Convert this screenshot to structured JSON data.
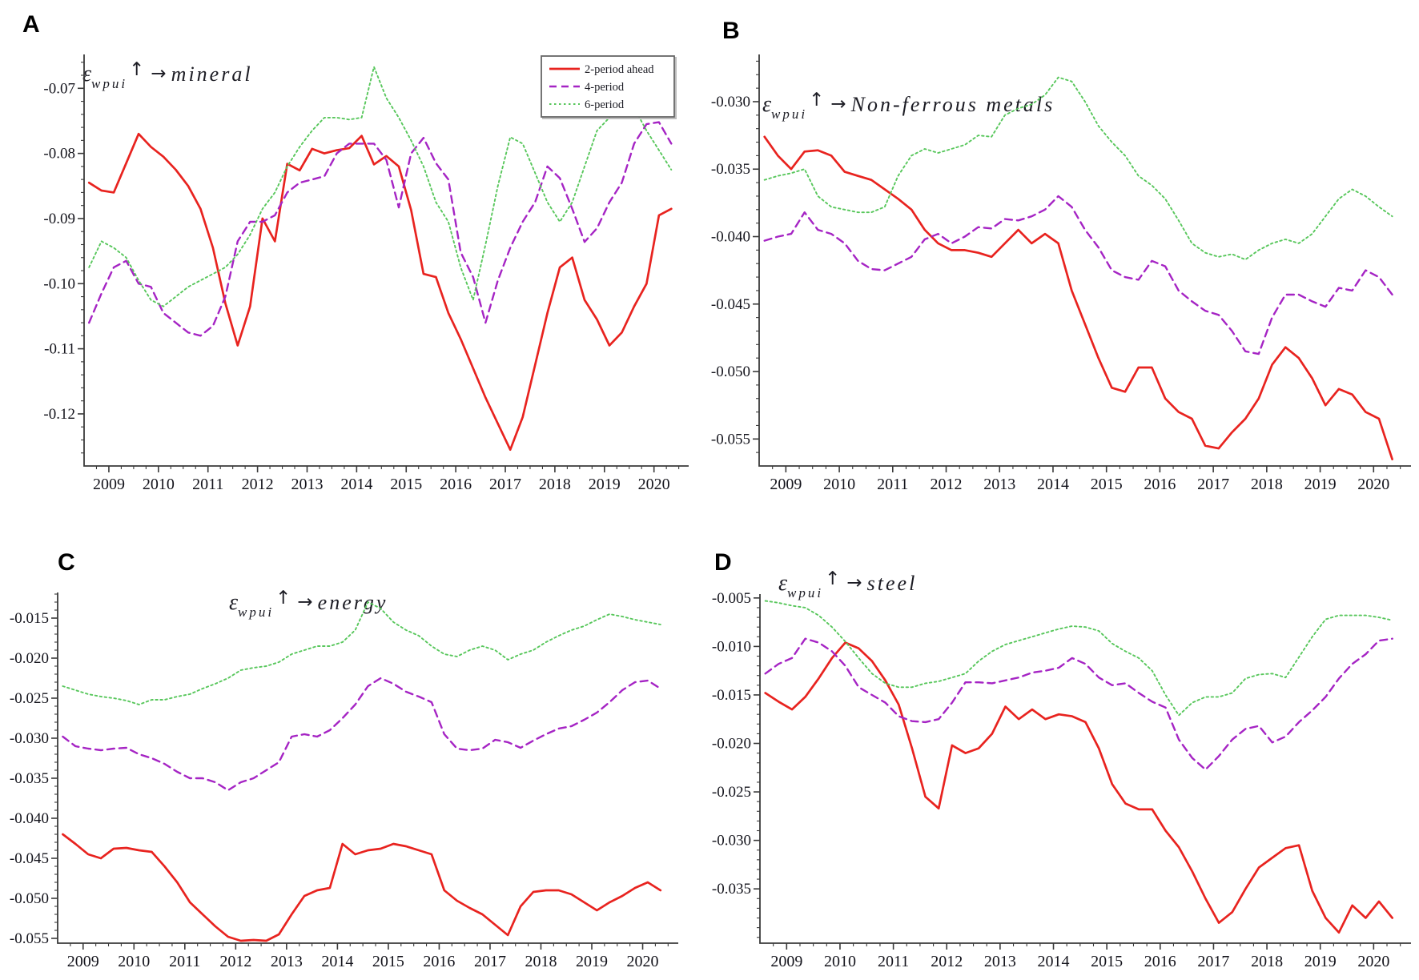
{
  "figure": {
    "background": "#ffffff"
  },
  "chart_data": [
    {
      "panel_label": "A",
      "type": "line",
      "title": {
        "symbol": "ε",
        "subscript": "wpui",
        "up_arrow": "↑",
        "right_arrow": "→",
        "target": "mineral"
      },
      "x_start": 2008.6,
      "x_step": 0.25,
      "xlim": [
        2008.5,
        2020.7
      ],
      "ylim": [
        -0.128,
        -0.0648
      ],
      "xticks": [
        "2009",
        "2010",
        "2011",
        "2012",
        "2013",
        "2014",
        "2015",
        "2016",
        "2017",
        "2018",
        "2019",
        "2020"
      ],
      "yticks": [
        "-0.07",
        "-0.08",
        "-0.09",
        "-0.10",
        "-0.11",
        "-0.12"
      ],
      "minor_y_step": 0.002,
      "legend": {
        "show": true,
        "position": "top-right"
      },
      "series": [
        {
          "name": "2-period ahead",
          "color": "#e8231f",
          "style": "solid",
          "values": [
            -0.0845,
            -0.0857,
            -0.086,
            -0.0815,
            -0.077,
            -0.079,
            -0.0805,
            -0.0825,
            -0.085,
            -0.0885,
            -0.0945,
            -0.103,
            -0.1095,
            -0.1035,
            -0.09,
            -0.0935,
            -0.0816,
            -0.0826,
            -0.0793,
            -0.08,
            -0.0795,
            -0.0792,
            -0.0773,
            -0.0817,
            -0.0804,
            -0.082,
            -0.0887,
            -0.0985,
            -0.099,
            -0.1045,
            -0.1085,
            -0.113,
            -0.1175,
            -0.1215,
            -0.1255,
            -0.1205,
            -0.1125,
            -0.1045,
            -0.0975,
            -0.096,
            -0.1025,
            -0.1055,
            -0.1095,
            -0.1075,
            -0.1035,
            -0.1,
            -0.0895,
            -0.0885
          ]
        },
        {
          "name": "4-period",
          "color": "#a524c4",
          "style": "dashed",
          "values": [
            -0.106,
            -0.1015,
            -0.0975,
            -0.0965,
            -0.1,
            -0.1005,
            -0.1045,
            -0.106,
            -0.1075,
            -0.108,
            -0.1065,
            -0.102,
            -0.0935,
            -0.0905,
            -0.0905,
            -0.0895,
            -0.086,
            -0.0845,
            -0.084,
            -0.0835,
            -0.08,
            -0.0785,
            -0.0785,
            -0.0785,
            -0.081,
            -0.0883,
            -0.08,
            -0.0776,
            -0.0815,
            -0.084,
            -0.0952,
            -0.099,
            -0.106,
            -0.0995,
            -0.0945,
            -0.0905,
            -0.0875,
            -0.082,
            -0.0838,
            -0.0885,
            -0.0936,
            -0.0915,
            -0.0875,
            -0.0845,
            -0.0785,
            -0.0755,
            -0.0752,
            -0.0785
          ]
        },
        {
          "name": "6-period",
          "color": "#58c75c",
          "style": "dotted",
          "values": [
            -0.0975,
            -0.0935,
            -0.0945,
            -0.096,
            -0.0995,
            -0.1025,
            -0.1035,
            -0.102,
            -0.1005,
            -0.0995,
            -0.0985,
            -0.0975,
            -0.0955,
            -0.0925,
            -0.0885,
            -0.086,
            -0.082,
            -0.079,
            -0.0765,
            -0.0745,
            -0.0745,
            -0.0748,
            -0.0745,
            -0.0667,
            -0.0715,
            -0.0745,
            -0.078,
            -0.082,
            -0.0875,
            -0.0905,
            -0.0975,
            -0.1025,
            -0.094,
            -0.085,
            -0.0775,
            -0.0785,
            -0.083,
            -0.0875,
            -0.0905,
            -0.0875,
            -0.082,
            -0.0765,
            -0.0745,
            -0.0715,
            -0.073,
            -0.0765,
            -0.0795,
            -0.0825
          ]
        }
      ]
    },
    {
      "panel_label": "B",
      "type": "line",
      "title": {
        "symbol": "ε",
        "subscript": "wpui",
        "up_arrow": "↑",
        "right_arrow": "→",
        "target": "Non-ferrous metals"
      },
      "x_start": 2008.6,
      "x_step": 0.25,
      "xlim": [
        2008.5,
        2020.7
      ],
      "ylim": [
        -0.057,
        -0.0265
      ],
      "xticks": [
        "2009",
        "2010",
        "2011",
        "2012",
        "2013",
        "2014",
        "2015",
        "2016",
        "2017",
        "2018",
        "2019",
        "2020"
      ],
      "yticks": [
        "-0.030",
        "-0.035",
        "-0.040",
        "-0.045",
        "-0.050",
        "-0.055"
      ],
      "minor_y_step": 0.001,
      "legend": {
        "show": false,
        "position": ""
      },
      "series": [
        {
          "name": "2-period ahead",
          "color": "#e8231f",
          "style": "solid",
          "values": [
            -0.0326,
            -0.034,
            -0.035,
            -0.0337,
            -0.0336,
            -0.034,
            -0.0352,
            -0.0355,
            -0.0358,
            -0.0365,
            -0.0372,
            -0.038,
            -0.0395,
            -0.0405,
            -0.041,
            -0.041,
            -0.0412,
            -0.0415,
            -0.0405,
            -0.0395,
            -0.0405,
            -0.0398,
            -0.0405,
            -0.044,
            -0.0465,
            -0.049,
            -0.0512,
            -0.0515,
            -0.0497,
            -0.0497,
            -0.052,
            -0.053,
            -0.0535,
            -0.0555,
            -0.0557,
            -0.0545,
            -0.0535,
            -0.052,
            -0.0495,
            -0.0482,
            -0.049,
            -0.0505,
            -0.0525,
            -0.0513,
            -0.0517,
            -0.053,
            -0.0535,
            -0.0565
          ]
        },
        {
          "name": "4-period",
          "color": "#a524c4",
          "style": "dashed",
          "values": [
            -0.0403,
            -0.04,
            -0.0398,
            -0.0382,
            -0.0395,
            -0.0398,
            -0.0405,
            -0.0418,
            -0.0424,
            -0.0425,
            -0.042,
            -0.0415,
            -0.0402,
            -0.0398,
            -0.0405,
            -0.04,
            -0.0393,
            -0.0394,
            -0.0387,
            -0.0388,
            -0.0385,
            -0.038,
            -0.037,
            -0.0378,
            -0.0395,
            -0.0408,
            -0.0425,
            -0.043,
            -0.0432,
            -0.0418,
            -0.0422,
            -0.044,
            -0.0448,
            -0.0455,
            -0.0458,
            -0.047,
            -0.0485,
            -0.0487,
            -0.046,
            -0.0443,
            -0.0443,
            -0.0448,
            -0.0452,
            -0.0438,
            -0.044,
            -0.0425,
            -0.043,
            -0.0443
          ]
        },
        {
          "name": "6-period",
          "color": "#58c75c",
          "style": "dotted",
          "values": [
            -0.0358,
            -0.0355,
            -0.0353,
            -0.035,
            -0.037,
            -0.0378,
            -0.038,
            -0.0382,
            -0.0382,
            -0.0378,
            -0.0355,
            -0.034,
            -0.0335,
            -0.0338,
            -0.0335,
            -0.0332,
            -0.0325,
            -0.0326,
            -0.031,
            -0.0305,
            -0.0302,
            -0.0295,
            -0.0282,
            -0.0285,
            -0.03,
            -0.0318,
            -0.033,
            -0.034,
            -0.0355,
            -0.0362,
            -0.0372,
            -0.0388,
            -0.0405,
            -0.0412,
            -0.0415,
            -0.0413,
            -0.0417,
            -0.041,
            -0.0405,
            -0.0402,
            -0.0405,
            -0.0398,
            -0.0385,
            -0.0372,
            -0.0365,
            -0.037,
            -0.0378,
            -0.0385
          ]
        }
      ]
    },
    {
      "panel_label": "C",
      "type": "line",
      "title": {
        "symbol": "ε",
        "subscript": "wpui",
        "up_arrow": "↑",
        "right_arrow": "→",
        "target": "energy"
      },
      "x_start": 2008.6,
      "x_step": 0.25,
      "xlim": [
        2008.5,
        2020.7
      ],
      "ylim": [
        -0.0556,
        -0.0118
      ],
      "xticks": [
        "2009",
        "2010",
        "2011",
        "2012",
        "2013",
        "2014",
        "2015",
        "2016",
        "2017",
        "2018",
        "2019",
        "2020"
      ],
      "yticks": [
        "-0.015",
        "-0.020",
        "-0.025",
        "-0.030",
        "-0.035",
        "-0.040",
        "-0.045",
        "-0.050",
        "-0.055"
      ],
      "minor_y_step": 0.001,
      "legend": {
        "show": false,
        "position": ""
      },
      "series": [
        {
          "name": "2-period ahead",
          "color": "#e8231f",
          "style": "solid",
          "values": [
            -0.042,
            -0.0432,
            -0.0445,
            -0.045,
            -0.0438,
            -0.0437,
            -0.044,
            -0.0442,
            -0.046,
            -0.048,
            -0.0505,
            -0.052,
            -0.0535,
            -0.0548,
            -0.0553,
            -0.0552,
            -0.0553,
            -0.0545,
            -0.052,
            -0.0497,
            -0.049,
            -0.0487,
            -0.0432,
            -0.0445,
            -0.044,
            -0.0438,
            -0.0432,
            -0.0435,
            -0.044,
            -0.0445,
            -0.049,
            -0.0503,
            -0.0512,
            -0.052,
            -0.0533,
            -0.0546,
            -0.051,
            -0.0492,
            -0.049,
            -0.049,
            -0.0495,
            -0.0505,
            -0.0515,
            -0.0505,
            -0.0497,
            -0.0487,
            -0.048,
            -0.049
          ]
        },
        {
          "name": "4-period",
          "color": "#a524c4",
          "style": "dashed",
          "values": [
            -0.0298,
            -0.031,
            -0.0313,
            -0.0315,
            -0.0313,
            -0.0312,
            -0.032,
            -0.0325,
            -0.0332,
            -0.0342,
            -0.035,
            -0.035,
            -0.0355,
            -0.0365,
            -0.0355,
            -0.035,
            -0.034,
            -0.033,
            -0.0298,
            -0.0295,
            -0.0298,
            -0.029,
            -0.0275,
            -0.0258,
            -0.0235,
            -0.0225,
            -0.0232,
            -0.0242,
            -0.0248,
            -0.0255,
            -0.0295,
            -0.0313,
            -0.0315,
            -0.0313,
            -0.0302,
            -0.0305,
            -0.0312,
            -0.0303,
            -0.0295,
            -0.0288,
            -0.0285,
            -0.0277,
            -0.0268,
            -0.0255,
            -0.024,
            -0.023,
            -0.0228,
            -0.0238
          ]
        },
        {
          "name": "6-period",
          "color": "#58c75c",
          "style": "dotted",
          "values": [
            -0.0235,
            -0.024,
            -0.0245,
            -0.0248,
            -0.025,
            -0.0253,
            -0.0258,
            -0.0252,
            -0.0252,
            -0.0248,
            -0.0245,
            -0.0238,
            -0.0232,
            -0.0225,
            -0.0215,
            -0.0212,
            -0.021,
            -0.0205,
            -0.0195,
            -0.019,
            -0.0185,
            -0.0185,
            -0.018,
            -0.0165,
            -0.013,
            -0.0138,
            -0.0155,
            -0.0165,
            -0.0172,
            -0.0185,
            -0.0195,
            -0.0198,
            -0.019,
            -0.0185,
            -0.019,
            -0.0202,
            -0.0195,
            -0.019,
            -0.018,
            -0.0172,
            -0.0165,
            -0.016,
            -0.0152,
            -0.0145,
            -0.0148,
            -0.0152,
            -0.0155,
            -0.0158
          ]
        }
      ]
    },
    {
      "panel_label": "D",
      "type": "line",
      "title": {
        "symbol": "ε",
        "subscript": "wpui",
        "up_arrow": "↑",
        "right_arrow": "→",
        "target": "steel"
      },
      "x_start": 2008.6,
      "x_step": 0.25,
      "xlim": [
        2008.5,
        2020.7
      ],
      "ylim": [
        -0.0406,
        -0.0046
      ],
      "xticks": [
        "2009",
        "2010",
        "2011",
        "2012",
        "2013",
        "2014",
        "2015",
        "2016",
        "2017",
        "2018",
        "2019",
        "2020"
      ],
      "yticks": [
        "-0.005",
        "-0.010",
        "-0.015",
        "-0.020",
        "-0.025",
        "-0.030",
        "-0.035"
      ],
      "minor_y_step": 0.001,
      "legend": {
        "show": false,
        "position": ""
      },
      "series": [
        {
          "name": "2-period ahead",
          "color": "#e8231f",
          "style": "solid",
          "values": [
            -0.0148,
            -0.0157,
            -0.0165,
            -0.0152,
            -0.0133,
            -0.0112,
            -0.0096,
            -0.0102,
            -0.0115,
            -0.0135,
            -0.016,
            -0.0205,
            -0.0255,
            -0.0267,
            -0.0202,
            -0.021,
            -0.0205,
            -0.019,
            -0.0162,
            -0.0175,
            -0.0165,
            -0.0175,
            -0.017,
            -0.0172,
            -0.0178,
            -0.0205,
            -0.0242,
            -0.0262,
            -0.0268,
            -0.0268,
            -0.029,
            -0.0307,
            -0.0332,
            -0.036,
            -0.0385,
            -0.0374,
            -0.035,
            -0.0328,
            -0.0318,
            -0.0308,
            -0.0305,
            -0.0352,
            -0.038,
            -0.0395,
            -0.0367,
            -0.038,
            -0.0363,
            -0.038
          ]
        },
        {
          "name": "4-period",
          "color": "#a524c4",
          "style": "dashed",
          "values": [
            -0.0128,
            -0.0118,
            -0.0112,
            -0.0092,
            -0.0096,
            -0.0105,
            -0.012,
            -0.0142,
            -0.015,
            -0.0158,
            -0.0172,
            -0.0177,
            -0.0178,
            -0.0175,
            -0.0158,
            -0.0137,
            -0.0137,
            -0.0138,
            -0.0135,
            -0.0132,
            -0.0127,
            -0.0125,
            -0.0122,
            -0.0112,
            -0.0118,
            -0.0132,
            -0.014,
            -0.0138,
            -0.0148,
            -0.0157,
            -0.0163,
            -0.0196,
            -0.0215,
            -0.0227,
            -0.0213,
            -0.0196,
            -0.0185,
            -0.0182,
            -0.0199,
            -0.0193,
            -0.0178,
            -0.0166,
            -0.0152,
            -0.0133,
            -0.0118,
            -0.0108,
            -0.0094,
            -0.0092
          ]
        },
        {
          "name": "6-period",
          "color": "#58c75c",
          "style": "dotted",
          "values": [
            -0.0053,
            -0.0055,
            -0.0058,
            -0.006,
            -0.0068,
            -0.008,
            -0.0095,
            -0.0112,
            -0.0128,
            -0.0138,
            -0.0142,
            -0.0142,
            -0.0138,
            -0.0136,
            -0.0132,
            -0.0128,
            -0.0115,
            -0.0105,
            -0.0098,
            -0.0094,
            -0.009,
            -0.0086,
            -0.0082,
            -0.0079,
            -0.008,
            -0.0084,
            -0.0097,
            -0.0105,
            -0.0112,
            -0.0125,
            -0.015,
            -0.0171,
            -0.0158,
            -0.0152,
            -0.0152,
            -0.0148,
            -0.0133,
            -0.0129,
            -0.0128,
            -0.0132,
            -0.0111,
            -0.009,
            -0.0072,
            -0.0068,
            -0.0068,
            -0.0068,
            -0.007,
            -0.0073
          ]
        }
      ]
    }
  ]
}
